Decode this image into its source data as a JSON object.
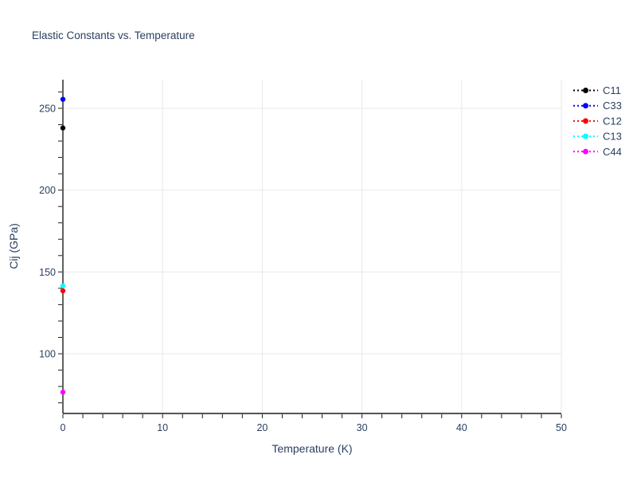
{
  "chart_data": {
    "type": "scatter",
    "title": "Elastic Constants vs. Temperature",
    "xlabel": "Temperature (K)",
    "ylabel": "Cij (GPa)",
    "xlim": [
      0,
      50
    ],
    "ylim": [
      63.5,
      267.5
    ],
    "x_major_ticks": [
      0,
      10,
      20,
      30,
      40,
      50
    ],
    "x_minor_tick_step": 2,
    "y_major_ticks": [
      100,
      150,
      200,
      250
    ],
    "y_minor_tick_step": 10,
    "y_minor_tick_range": [
      70,
      260
    ],
    "grid": true,
    "legend_position": "top-right-outside",
    "marker": "circle",
    "legend_line_style": "dot",
    "series": [
      {
        "name": "C11",
        "color": "#000000",
        "x": [
          0
        ],
        "y": [
          238.0
        ]
      },
      {
        "name": "C33",
        "color": "#0000ff",
        "x": [
          0
        ],
        "y": [
          255.5
        ]
      },
      {
        "name": "C12",
        "color": "#ff0000",
        "x": [
          0
        ],
        "y": [
          138.5
        ]
      },
      {
        "name": "C13",
        "color": "#00ffff",
        "x": [
          0
        ],
        "y": [
          141.5
        ]
      },
      {
        "name": "C44",
        "color": "#ff00ff",
        "x": [
          0
        ],
        "y": [
          76.5
        ]
      }
    ]
  },
  "style": {
    "text_color": "#2a3f5f",
    "grid_color": "#e9e9e9",
    "axis_color": "#1c1c1c",
    "background": "#ffffff"
  }
}
